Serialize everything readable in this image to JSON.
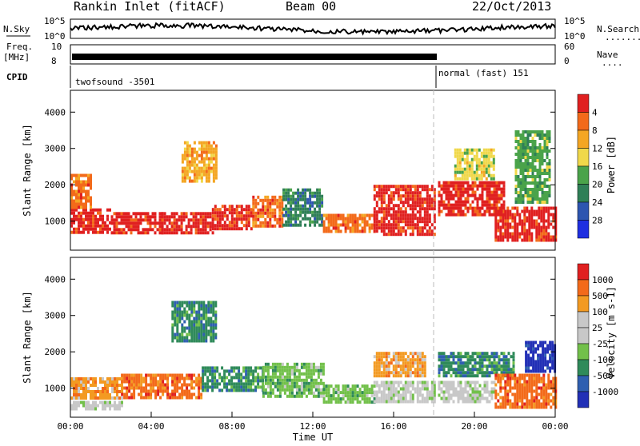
{
  "header": {
    "station": "Rankin Inlet (fitACF)",
    "beam": "Beam 00",
    "date": "22/Oct/2013"
  },
  "strip_panels": {
    "nsky_label": "N.Sky",
    "nsearch_label": "N.Search",
    "nsearch_marker": "........",
    "freq_label_line1": "Freq.",
    "freq_label_line2": "[MHz]",
    "nave_label": "Nave",
    "nave_marker": "....",
    "cpid_label": "CPID",
    "nsky_ticks_left": [
      "10^5",
      "10^0"
    ],
    "nsky_ticks_right": [
      "10^5",
      "10^0"
    ],
    "freq_ticks_left": [
      "10",
      "8"
    ],
    "nave_ticks_right": [
      "60",
      "0"
    ],
    "cpid_segments": [
      {
        "name": "twofsound -3501",
        "start_h": 0,
        "end_h": 18.1
      },
      {
        "name": "normal (fast) 151",
        "start_h": 18.1,
        "end_h": 24
      }
    ]
  },
  "colors": {
    "power_scale": [
      "#1f2fe0",
      "#2d55b0",
      "#2f7f57",
      "#4aa34a",
      "#f0d84a",
      "#f4a623",
      "#f36a1a",
      "#e02020"
    ],
    "velocity_scale": [
      "#2230b6",
      "#2f5fb0",
      "#2f8a5a",
      "#72c04a",
      "#c8c8c8",
      "#c8c8c8",
      "#f39a22",
      "#f36a1a",
      "#e02020"
    ]
  },
  "chart_data": [
    {
      "type": "heatmap",
      "name": "power",
      "x_unit": "hours UT",
      "xlim": [
        0,
        24
      ],
      "ylim": [
        200,
        4600
      ],
      "ylabel": "Slant Range [km]",
      "ytick_labels": [
        "1000",
        "2000",
        "3000",
        "4000"
      ],
      "yticks": [
        1000,
        2000,
        3000,
        4000
      ],
      "colorbar_label": "Power [dB]",
      "colorbar_ticks": [
        "4",
        "8",
        "12",
        "16",
        "20",
        "24",
        "28"
      ],
      "bands": [
        {
          "x0": 0.0,
          "x1": 2.0,
          "y0": 650,
          "y1": 1350,
          "level": 7
        },
        {
          "x0": 0.0,
          "x1": 1.0,
          "y0": 1400,
          "y1": 2300,
          "level": 6
        },
        {
          "x0": 2.0,
          "x1": 4.5,
          "y0": 700,
          "y1": 1250,
          "level": 7
        },
        {
          "x0": 4.5,
          "x1": 7.0,
          "y0": 700,
          "y1": 1250,
          "level": 7
        },
        {
          "x0": 5.5,
          "x1": 7.2,
          "y0": 2100,
          "y1": 3200,
          "level": 5
        },
        {
          "x0": 7.0,
          "x1": 9.0,
          "y0": 800,
          "y1": 1450,
          "level": 7
        },
        {
          "x0": 9.0,
          "x1": 10.5,
          "y0": 900,
          "y1": 1700,
          "level": 6
        },
        {
          "x0": 10.5,
          "x1": 12.5,
          "y0": 900,
          "y1": 1900,
          "level": 2
        },
        {
          "x0": 12.5,
          "x1": 15.0,
          "y0": 700,
          "y1": 1200,
          "level": 6
        },
        {
          "x0": 15.0,
          "x1": 18.0,
          "y0": 600,
          "y1": 2000,
          "level": 7
        },
        {
          "x0": 18.2,
          "x1": 21.5,
          "y0": 1200,
          "y1": 2100,
          "level": 7
        },
        {
          "x0": 19.0,
          "x1": 21.0,
          "y0": 2200,
          "y1": 3000,
          "level": 4
        },
        {
          "x0": 21.0,
          "x1": 24.0,
          "y0": 500,
          "y1": 1400,
          "level": 7
        },
        {
          "x0": 22.0,
          "x1": 23.7,
          "y0": 1500,
          "y1": 3500,
          "level": 3
        }
      ]
    },
    {
      "type": "heatmap",
      "name": "velocity",
      "x_unit": "hours UT",
      "xlim": [
        0,
        24
      ],
      "ylim": [
        200,
        4600
      ],
      "xlabel": "Time UT",
      "ylabel": "Slant Range [km]",
      "xtick_labels": [
        "00:00",
        "04:00",
        "08:00",
        "12:00",
        "16:00",
        "20:00",
        "00:00"
      ],
      "xticks": [
        0,
        4,
        8,
        12,
        16,
        20,
        24
      ],
      "ytick_labels": [
        "1000",
        "2000",
        "3000",
        "4000"
      ],
      "yticks": [
        1000,
        2000,
        3000,
        4000
      ],
      "colorbar_label": "Velocity [m s-1]",
      "colorbar_ticks": [
        "1000",
        "500",
        "100",
        "25",
        "-25",
        "-100",
        "-500",
        "-1000"
      ],
      "bands": [
        {
          "x0": 0.0,
          "x1": 2.5,
          "y0": 700,
          "y1": 1300,
          "level": 6
        },
        {
          "x0": 0.0,
          "x1": 2.5,
          "y0": 400,
          "y1": 650,
          "level": 4
        },
        {
          "x0": 2.5,
          "x1": 6.5,
          "y0": 700,
          "y1": 1400,
          "level": 7
        },
        {
          "x0": 5.0,
          "x1": 7.2,
          "y0": 2300,
          "y1": 3400,
          "level": 2
        },
        {
          "x0": 6.5,
          "x1": 9.5,
          "y0": 900,
          "y1": 1600,
          "level": 2
        },
        {
          "x0": 9.5,
          "x1": 12.5,
          "y0": 800,
          "y1": 1700,
          "level": 3
        },
        {
          "x0": 12.5,
          "x1": 15.0,
          "y0": 600,
          "y1": 1100,
          "level": 3
        },
        {
          "x0": 15.0,
          "x1": 18.0,
          "y0": 600,
          "y1": 1200,
          "level": 4
        },
        {
          "x0": 15.0,
          "x1": 17.5,
          "y0": 1300,
          "y1": 2000,
          "level": 6
        },
        {
          "x0": 18.2,
          "x1": 21.0,
          "y0": 600,
          "y1": 1200,
          "level": 4
        },
        {
          "x0": 18.2,
          "x1": 22.0,
          "y0": 1300,
          "y1": 2000,
          "level": 2
        },
        {
          "x0": 21.0,
          "x1": 24.0,
          "y0": 500,
          "y1": 1400,
          "level": 7
        },
        {
          "x0": 22.5,
          "x1": 24.0,
          "y0": 1500,
          "y1": 2300,
          "level": 0
        }
      ]
    }
  ]
}
